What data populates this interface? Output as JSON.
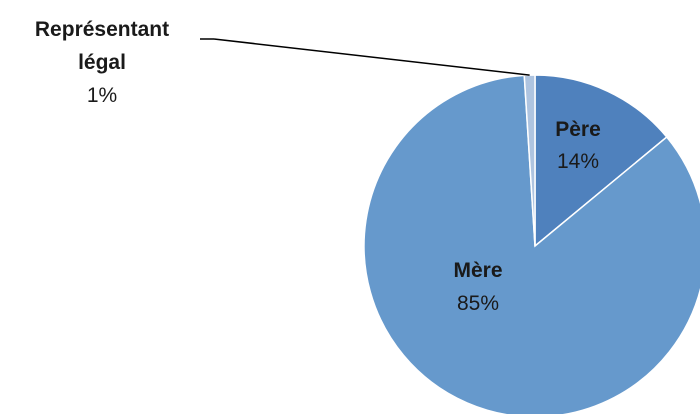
{
  "chart_data": {
    "type": "pie",
    "title": "",
    "slices": [
      {
        "name": "Père",
        "value": 14,
        "label": "14%",
        "color": "#4f81bd"
      },
      {
        "name": "Mère",
        "value": 85,
        "label": "85%",
        "color": "#6699cc"
      },
      {
        "name": "Représentant légal",
        "name_lines": [
          "Représentant",
          "légal"
        ],
        "value": 1,
        "label": "1%",
        "color": "#aec4e0"
      }
    ],
    "start_angle_deg": 0,
    "direction": "clockwise"
  }
}
